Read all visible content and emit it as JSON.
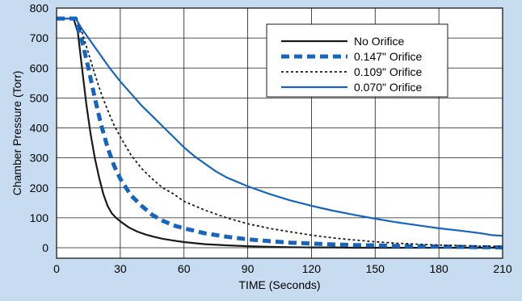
{
  "chart_data": {
    "type": "line",
    "title": "",
    "xlabel": "TIME (Seconds)",
    "ylabel": "Chamber Pressure (Torr)",
    "xlim": [
      0,
      210
    ],
    "ylim": [
      -35,
      800
    ],
    "xticks": [
      0,
      30,
      60,
      90,
      120,
      150,
      180,
      210
    ],
    "yticks": [
      0,
      100,
      200,
      300,
      400,
      500,
      600,
      700,
      800
    ],
    "grid": true,
    "legend_position": "top-right",
    "series": [
      {
        "name": "No Orifice",
        "color": "#1a1a1a",
        "style": "solid",
        "x": [
          0,
          8,
          10,
          12,
          14,
          16,
          18,
          20,
          22,
          24,
          26,
          28,
          30,
          34,
          38,
          42,
          46,
          50,
          55,
          60,
          70,
          80,
          90,
          100,
          110,
          120,
          130,
          140,
          150,
          160,
          170,
          180,
          190,
          200,
          210
        ],
        "y": [
          765,
          765,
          720,
          600,
          480,
          380,
          300,
          235,
          180,
          140,
          115,
          100,
          88,
          68,
          54,
          44,
          36,
          30,
          24,
          19,
          12,
          8,
          5,
          3,
          2,
          1,
          1,
          0,
          0,
          0,
          0,
          0,
          0,
          0,
          0
        ]
      },
      {
        "name": "0.147\" Orifice",
        "color": "#1565c0",
        "style": "dashed-heavy",
        "x": [
          0,
          9,
          12,
          15,
          18,
          21,
          24,
          27,
          30,
          35,
          40,
          45,
          50,
          55,
          60,
          70,
          80,
          90,
          100,
          110,
          120,
          130,
          140,
          150,
          160,
          170,
          180,
          190,
          200,
          210
        ],
        "y": [
          765,
          765,
          690,
          600,
          500,
          410,
          335,
          275,
          230,
          175,
          140,
          110,
          90,
          75,
          65,
          48,
          37,
          28,
          22,
          17,
          14,
          11,
          9,
          8,
          6,
          5,
          4,
          3,
          2,
          1
        ]
      },
      {
        "name": "0.109\" Orifice",
        "color": "#1a1a1a",
        "style": "dotted",
        "x": [
          0,
          9,
          12,
          15,
          18,
          21,
          24,
          27,
          30,
          35,
          40,
          45,
          50,
          55,
          60,
          70,
          80,
          90,
          100,
          110,
          120,
          130,
          140,
          150,
          160,
          170,
          180,
          190,
          200,
          210
        ],
        "y": [
          765,
          765,
          720,
          650,
          580,
          515,
          460,
          410,
          370,
          310,
          265,
          230,
          200,
          180,
          155,
          125,
          100,
          80,
          65,
          53,
          42,
          33,
          26,
          20,
          15,
          12,
          9,
          7,
          5,
          4
        ]
      },
      {
        "name": "0.070\" Orifice",
        "color": "#1565c0",
        "style": "solid",
        "x": [
          0,
          9,
          12,
          15,
          20,
          25,
          30,
          35,
          40,
          45,
          50,
          55,
          60,
          65,
          70,
          75,
          80,
          90,
          100,
          110,
          120,
          130,
          140,
          150,
          160,
          170,
          180,
          190,
          200,
          205,
          210
        ],
        "y": [
          765,
          765,
          730,
          700,
          650,
          600,
          555,
          515,
          475,
          440,
          405,
          370,
          335,
          305,
          280,
          255,
          235,
          205,
          180,
          158,
          140,
          124,
          110,
          97,
          85,
          75,
          65,
          57,
          48,
          42,
          40
        ]
      }
    ]
  }
}
